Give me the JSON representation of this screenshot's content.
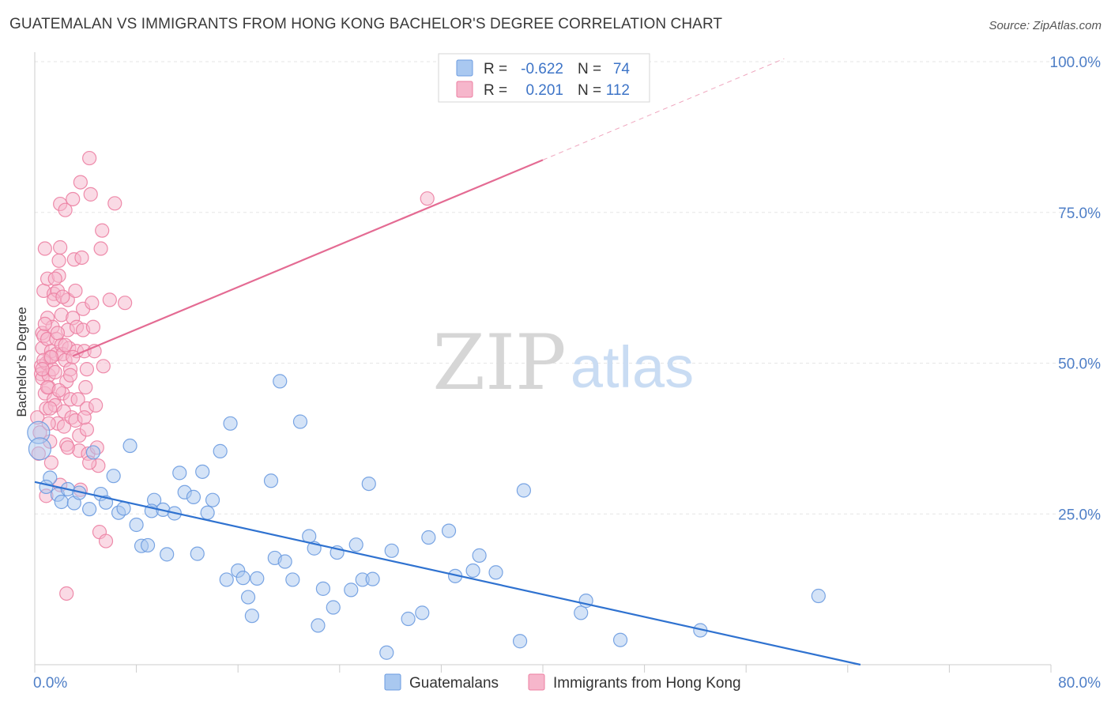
{
  "title": "GUATEMALAN VS IMMIGRANTS FROM HONG KONG BACHELOR'S DEGREE CORRELATION CHART",
  "source": "Source: ZipAtlas.com",
  "watermark": {
    "zip": "ZIP",
    "atlas": "atlas"
  },
  "colors": {
    "blue_fill": "#a9c8f0",
    "blue_stroke": "#6b9be0",
    "blue_line": "#2f72d0",
    "pink_fill": "#f6b6cb",
    "pink_stroke": "#ec7fa2",
    "pink_line": "#e46b93",
    "grid": "#e6e6e6",
    "tick_text": "#4f7fc7"
  },
  "legend": {
    "rows": [
      {
        "r_label": "R =",
        "r_value": "-0.622",
        "n_label": "N =",
        "n_value": "74"
      },
      {
        "r_label": "R =",
        "r_value": "0.201",
        "n_label": "N =",
        "n_value": "112"
      }
    ]
  },
  "chart_data": {
    "type": "scatter",
    "xlabel": "",
    "ylabel": "Bachelor's Degree",
    "xlim": [
      0,
      80
    ],
    "ylim": [
      0,
      100
    ],
    "x_tick_labels": [
      "0.0%",
      "80.0%"
    ],
    "y_ticks": [
      25,
      50,
      75,
      100
    ],
    "y_tick_labels": [
      "25.0%",
      "50.0%",
      "75.0%",
      "100.0%"
    ],
    "grid": true,
    "legend_position": "top-center",
    "series": [
      {
        "name": "Guatemalans",
        "color": "#a9c8f0",
        "points": [
          [
            0.3,
            38.5
          ],
          [
            0.4,
            35.8
          ],
          [
            1.2,
            31
          ],
          [
            1.8,
            28.2
          ],
          [
            2.1,
            27
          ],
          [
            2.6,
            29.1
          ],
          [
            3.1,
            26.8
          ],
          [
            3.5,
            28.5
          ],
          [
            4.3,
            25.8
          ],
          [
            4.6,
            35.2
          ],
          [
            5.2,
            28.3
          ],
          [
            5.6,
            26.9
          ],
          [
            6.2,
            31.3
          ],
          [
            6.6,
            25.2
          ],
          [
            7.0,
            25.9
          ],
          [
            7.5,
            36.3
          ],
          [
            8.0,
            23.2
          ],
          [
            8.4,
            19.7
          ],
          [
            8.9,
            19.8
          ],
          [
            9.4,
            27.3
          ],
          [
            9.2,
            25.5
          ],
          [
            10.1,
            25.7
          ],
          [
            10.4,
            18.3
          ],
          [
            11.0,
            25.1
          ],
          [
            11.4,
            31.8
          ],
          [
            11.8,
            28.6
          ],
          [
            12.5,
            27.8
          ],
          [
            12.8,
            18.4
          ],
          [
            13.2,
            32
          ],
          [
            13.6,
            25.2
          ],
          [
            14.0,
            27.3
          ],
          [
            14.6,
            35.4
          ],
          [
            15.1,
            14.1
          ],
          [
            15.4,
            40
          ],
          [
            16.0,
            15.6
          ],
          [
            16.4,
            14.4
          ],
          [
            16.8,
            11.2
          ],
          [
            17.1,
            8.1
          ],
          [
            17.5,
            14.3
          ],
          [
            18.6,
            30.5
          ],
          [
            18.9,
            17.7
          ],
          [
            19.3,
            47
          ],
          [
            19.7,
            17.1
          ],
          [
            20.3,
            14.1
          ],
          [
            20.9,
            40.3
          ],
          [
            21.6,
            21.3
          ],
          [
            22.0,
            19.3
          ],
          [
            22.3,
            6.5
          ],
          [
            22.7,
            12.6
          ],
          [
            23.5,
            9.5
          ],
          [
            23.8,
            18.6
          ],
          [
            24.9,
            12.4
          ],
          [
            25.3,
            19.9
          ],
          [
            25.8,
            14.1
          ],
          [
            26.3,
            30
          ],
          [
            26.6,
            14.2
          ],
          [
            27.7,
            2
          ],
          [
            28.1,
            18.9
          ],
          [
            29.4,
            7.6
          ],
          [
            30.5,
            8.6
          ],
          [
            31.0,
            21.1
          ],
          [
            32.6,
            22.2
          ],
          [
            33.1,
            14.7
          ],
          [
            34.5,
            15.6
          ],
          [
            35.0,
            18.1
          ],
          [
            36.3,
            15.3
          ],
          [
            38.2,
            3.9
          ],
          [
            38.5,
            28.9
          ],
          [
            43.0,
            8.6
          ],
          [
            43.4,
            10.6
          ],
          [
            46.1,
            4.1
          ],
          [
            52.4,
            5.7
          ],
          [
            61.7,
            11.4
          ],
          [
            0.9,
            29.5
          ]
        ]
      },
      {
        "name": "Immigrants from Hong Kong",
        "color": "#f6b6cb",
        "points": [
          [
            0.2,
            41
          ],
          [
            0.3,
            35
          ],
          [
            0.4,
            38.5
          ],
          [
            0.5,
            49.5
          ],
          [
            0.5,
            48.2
          ],
          [
            0.6,
            52.5
          ],
          [
            0.6,
            55
          ],
          [
            0.6,
            47.5
          ],
          [
            0.7,
            62
          ],
          [
            0.7,
            54.5
          ],
          [
            0.8,
            69
          ],
          [
            0.8,
            45
          ],
          [
            0.9,
            50
          ],
          [
            0.9,
            42.5
          ],
          [
            1.0,
            57.5
          ],
          [
            1.0,
            64
          ],
          [
            1.0,
            54
          ],
          [
            1.1,
            46
          ],
          [
            1.1,
            48
          ],
          [
            1.2,
            51
          ],
          [
            1.2,
            37
          ],
          [
            1.3,
            33.5
          ],
          [
            1.3,
            52
          ],
          [
            1.4,
            56
          ],
          [
            1.4,
            49
          ],
          [
            1.5,
            61.5
          ],
          [
            1.5,
            44
          ],
          [
            1.6,
            43
          ],
          [
            1.6,
            48.5
          ],
          [
            1.7,
            54
          ],
          [
            1.7,
            51.5
          ],
          [
            1.8,
            40
          ],
          [
            1.8,
            62
          ],
          [
            1.9,
            64.5
          ],
          [
            1.9,
            67
          ],
          [
            2.0,
            69.2
          ],
          [
            2.0,
            76.4
          ],
          [
            2.1,
            58
          ],
          [
            2.1,
            53
          ],
          [
            2.2,
            51.5
          ],
          [
            2.2,
            45
          ],
          [
            2.3,
            42
          ],
          [
            2.3,
            39.5
          ],
          [
            2.4,
            75.4
          ],
          [
            2.4,
            50.5
          ],
          [
            2.5,
            47
          ],
          [
            2.6,
            60.5
          ],
          [
            2.6,
            55.5
          ],
          [
            2.7,
            52.5
          ],
          [
            2.8,
            49
          ],
          [
            2.8,
            44
          ],
          [
            2.9,
            41
          ],
          [
            3.0,
            77.2
          ],
          [
            3.0,
            57.5
          ],
          [
            3.1,
            67.2
          ],
          [
            3.2,
            62
          ],
          [
            3.3,
            56
          ],
          [
            3.3,
            52
          ],
          [
            3.4,
            44
          ],
          [
            3.5,
            38
          ],
          [
            3.5,
            35.5
          ],
          [
            3.6,
            80
          ],
          [
            3.7,
            67.5
          ],
          [
            3.8,
            59
          ],
          [
            3.8,
            55.5
          ],
          [
            3.9,
            52
          ],
          [
            4.0,
            46
          ],
          [
            4.1,
            42.5
          ],
          [
            4.1,
            39
          ],
          [
            4.2,
            35
          ],
          [
            4.3,
            84
          ],
          [
            4.4,
            78
          ],
          [
            4.5,
            60
          ],
          [
            4.6,
            56
          ],
          [
            4.7,
            52
          ],
          [
            4.8,
            43
          ],
          [
            4.9,
            36
          ],
          [
            5.0,
            33
          ],
          [
            5.1,
            22
          ],
          [
            5.2,
            69
          ],
          [
            5.3,
            72
          ],
          [
            5.4,
            49.5
          ],
          [
            5.6,
            20.5
          ],
          [
            5.9,
            60.5
          ],
          [
            6.3,
            76.5
          ],
          [
            7.1,
            60
          ],
          [
            1.2,
            42.5
          ],
          [
            2.5,
            36.5
          ],
          [
            3.6,
            29
          ],
          [
            0.9,
            28
          ],
          [
            2.0,
            29.8
          ],
          [
            1.5,
            60.5
          ],
          [
            2.8,
            48
          ],
          [
            4.1,
            49
          ],
          [
            3.2,
            40.5
          ],
          [
            1.0,
            46
          ],
          [
            1.8,
            55
          ],
          [
            2.4,
            53
          ],
          [
            0.7,
            50.5
          ],
          [
            1.3,
            51
          ],
          [
            3.9,
            41
          ],
          [
            2.6,
            36
          ],
          [
            4.3,
            33.5
          ],
          [
            1.1,
            40
          ],
          [
            0.8,
            56.5
          ],
          [
            1.6,
            64
          ],
          [
            2.2,
            61
          ],
          [
            3.0,
            51
          ],
          [
            2.5,
            11.8
          ],
          [
            30.9,
            77.3
          ],
          [
            1.9,
            45.5
          ],
          [
            0.6,
            49
          ]
        ]
      }
    ],
    "trendlines": [
      {
        "series": "Guatemalans",
        "x1": 0,
        "y1": 30.3,
        "x2": 65,
        "y2": 0,
        "style": "solid"
      },
      {
        "series": "Immigrants from Hong Kong",
        "x1": 3,
        "y1": 51.2,
        "x2": 40,
        "y2": 83.7,
        "style": "solid"
      },
      {
        "series": "Immigrants from Hong Kong",
        "x1": 40,
        "y1": 83.7,
        "x2": 59,
        "y2": 100.5,
        "style": "dashed"
      }
    ]
  }
}
